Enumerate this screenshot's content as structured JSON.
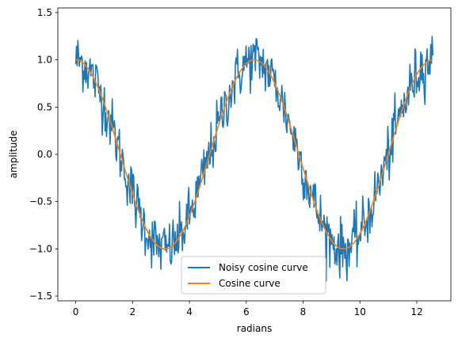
{
  "chart_data": {
    "type": "line",
    "xlabel": "radians",
    "ylabel": "amplitude",
    "xlim": [
      -0.63,
      13.2
    ],
    "ylim": [
      -1.55,
      1.55
    ],
    "xticks": [
      0,
      2,
      4,
      6,
      8,
      10,
      12
    ],
    "yticks": [
      -1.5,
      -1.0,
      -0.5,
      0.0,
      0.5,
      1.0,
      1.5
    ],
    "xtick_labels": [
      "0",
      "2",
      "4",
      "6",
      "8",
      "10",
      "12"
    ],
    "ytick_labels": [
      "−1.5",
      "−1.0",
      "−0.5",
      "0.0",
      "0.5",
      "1.0",
      "1.5"
    ],
    "grid": false,
    "legend_position": "lower-center",
    "x_range": [
      0,
      12.566
    ],
    "point_count": 500,
    "series": [
      {
        "name": "Noisy cosine curve",
        "color": "#1f77b4",
        "function": "cos(x) + gaussian noise",
        "noise_std": 0.15
      },
      {
        "name": "Cosine curve",
        "color": "#ff7f0e",
        "function": "cos(x)"
      }
    ]
  }
}
